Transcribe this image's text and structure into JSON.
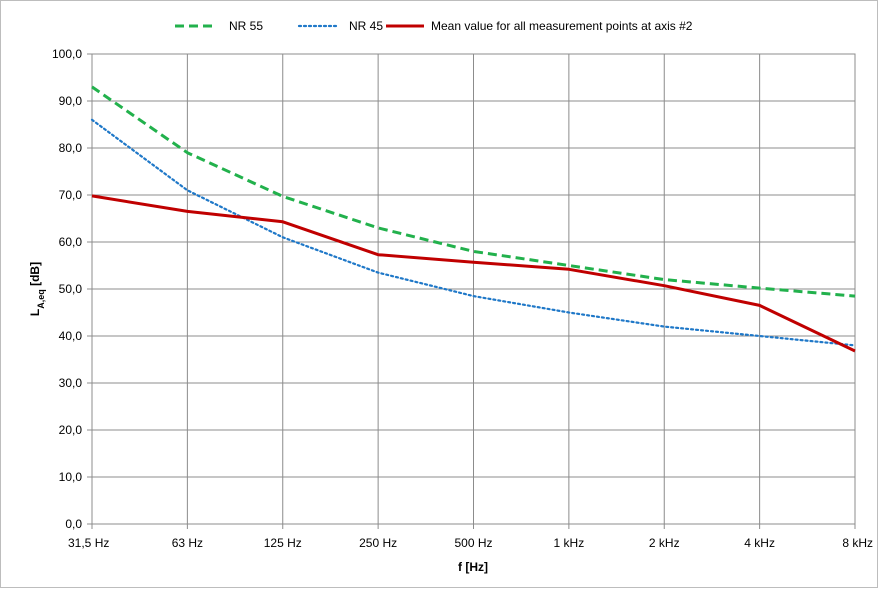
{
  "chart_data": {
    "type": "line",
    "title": "",
    "xlabel": "f [Hz]",
    "ylabel": "LA,eq [dB]",
    "ylabel_main": "L",
    "ylabel_sub": "A,eq",
    "ylabel_rest": " [dB]",
    "categories": [
      "31,5 Hz",
      "63 Hz",
      "125 Hz",
      "250 Hz",
      "500 Hz",
      "1 kHz",
      "2 kHz",
      "4 kHz",
      "8 kHz"
    ],
    "ylim": [
      0,
      100
    ],
    "yticks": [
      "0,0",
      "10,0",
      "20,0",
      "30,0",
      "40,0",
      "50,0",
      "60,0",
      "70,0",
      "80,0",
      "90,0",
      "100,0"
    ],
    "grid": true,
    "legend_position": "top",
    "series": [
      {
        "name": "NR 55",
        "values": [
          93,
          79,
          69.7,
          63,
          58,
          55,
          52,
          50.2,
          48.5
        ],
        "color": "#22b14c",
        "style": "dashed"
      },
      {
        "name": "NR 45",
        "values": [
          86,
          71,
          61,
          53.5,
          48.5,
          45,
          42,
          40,
          38
        ],
        "color": "#1f78c8",
        "style": "dotted"
      },
      {
        "name": "Mean value for all measurement points at axis #2",
        "values": [
          69.8,
          66.5,
          64.3,
          57.3,
          55.7,
          54.2,
          50.7,
          46.5,
          36.8
        ],
        "color": "#c00000",
        "style": "solid"
      }
    ]
  }
}
